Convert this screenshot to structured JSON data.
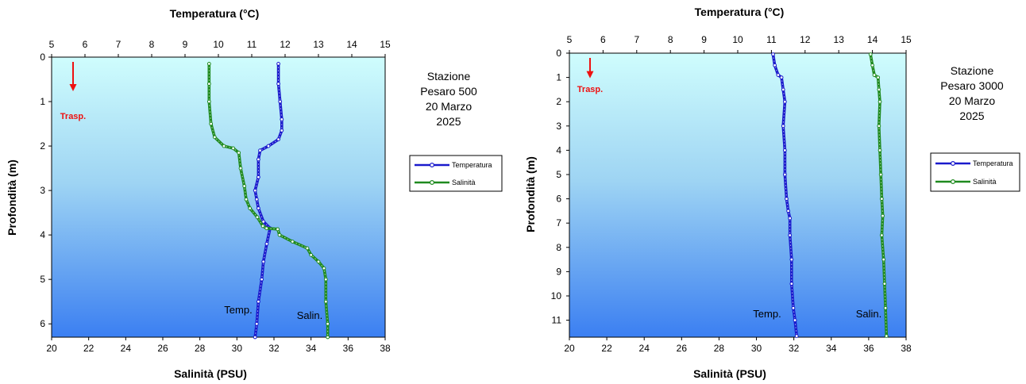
{
  "chart_data": [
    {
      "type": "line",
      "title_top": "Temperatura (°C)",
      "xlabel_bottom": "Salinità (PSU)",
      "ylabel": "Profondità (m)",
      "station": [
        "Stazione",
        "Pesaro 500",
        "20 Marzo",
        "2025"
      ],
      "temp_axis": {
        "min": 5,
        "max": 15,
        "ticks": [
          5,
          6,
          7,
          8,
          9,
          10,
          11,
          12,
          13,
          14,
          15
        ]
      },
      "sal_axis": {
        "min": 20,
        "max": 38,
        "ticks": [
          20,
          22,
          24,
          26,
          28,
          30,
          32,
          34,
          36,
          38
        ]
      },
      "depth_axis": {
        "min": 0,
        "max": 6.3,
        "ticks": [
          0,
          1,
          2,
          3,
          4,
          5,
          6
        ],
        "inverted": true
      },
      "series": [
        {
          "name": "Temperatura",
          "axis": "temp",
          "color": "#1a1acc",
          "points": [
            [
              11.8,
              0.15
            ],
            [
              11.8,
              0.6
            ],
            [
              11.85,
              1.0
            ],
            [
              11.9,
              1.4
            ],
            [
              11.9,
              1.65
            ],
            [
              11.8,
              1.85
            ],
            [
              11.5,
              2.0
            ],
            [
              11.25,
              2.1
            ],
            [
              11.2,
              2.3
            ],
            [
              11.2,
              2.7
            ],
            [
              11.1,
              3.0
            ],
            [
              11.15,
              3.2
            ],
            [
              11.2,
              3.4
            ],
            [
              11.35,
              3.7
            ],
            [
              11.55,
              3.85
            ],
            [
              11.45,
              4.2
            ],
            [
              11.35,
              4.6
            ],
            [
              11.3,
              5.0
            ],
            [
              11.2,
              5.5
            ],
            [
              11.15,
              6.0
            ],
            [
              11.1,
              6.3
            ]
          ]
        },
        {
          "name": "Salinità",
          "axis": "sal",
          "color": "#1f8a1f",
          "points": [
            [
              28.5,
              0.15
            ],
            [
              28.5,
              0.6
            ],
            [
              28.5,
              1.0
            ],
            [
              28.6,
              1.5
            ],
            [
              28.8,
              1.8
            ],
            [
              29.3,
              2.0
            ],
            [
              29.8,
              2.05
            ],
            [
              30.1,
              2.15
            ],
            [
              30.2,
              2.5
            ],
            [
              30.4,
              2.9
            ],
            [
              30.5,
              3.2
            ],
            [
              30.7,
              3.4
            ],
            [
              31.1,
              3.6
            ],
            [
              31.4,
              3.8
            ],
            [
              31.6,
              3.85
            ],
            [
              32.2,
              3.87
            ],
            [
              32.3,
              4.0
            ],
            [
              33.0,
              4.15
            ],
            [
              33.8,
              4.3
            ],
            [
              34.0,
              4.45
            ],
            [
              34.4,
              4.6
            ],
            [
              34.7,
              4.75
            ],
            [
              34.8,
              5.0
            ],
            [
              34.8,
              5.5
            ],
            [
              34.9,
              6.0
            ],
            [
              34.9,
              6.3
            ]
          ]
        }
      ],
      "annotations": {
        "temp_label": "Temp.",
        "sal_label": "Salin.",
        "trasp_label": "Trasp.",
        "trasp_depth": 0.75
      },
      "legend": [
        "Temperatura",
        "Salinità"
      ]
    },
    {
      "type": "line",
      "title_top": "Temperatura (°C)",
      "xlabel_bottom": "Salinità (PSU)",
      "ylabel": "Profondità (m)",
      "station": [
        "Stazione",
        "Pesaro 3000",
        "20 Marzo",
        "2025"
      ],
      "temp_axis": {
        "min": 5,
        "max": 15,
        "ticks": [
          5,
          6,
          7,
          8,
          9,
          10,
          11,
          12,
          13,
          14,
          15
        ]
      },
      "sal_axis": {
        "min": 20,
        "max": 38,
        "ticks": [
          20,
          22,
          24,
          26,
          28,
          30,
          32,
          34,
          36,
          38
        ]
      },
      "depth_axis": {
        "min": 0,
        "max": 11.7,
        "ticks": [
          0,
          1,
          2,
          3,
          4,
          5,
          6,
          7,
          8,
          9,
          10,
          11
        ],
        "inverted": true
      },
      "series": [
        {
          "name": "Temperatura",
          "axis": "temp",
          "color": "#1a1acc",
          "points": [
            [
              11.05,
              0.05
            ],
            [
              11.1,
              0.5
            ],
            [
              11.2,
              0.9
            ],
            [
              11.3,
              1.0
            ],
            [
              11.35,
              1.5
            ],
            [
              11.4,
              2.0
            ],
            [
              11.35,
              3.0
            ],
            [
              11.4,
              4.0
            ],
            [
              11.4,
              5.0
            ],
            [
              11.45,
              6.0
            ],
            [
              11.5,
              6.5
            ],
            [
              11.55,
              6.8
            ],
            [
              11.55,
              7.5
            ],
            [
              11.6,
              8.5
            ],
            [
              11.6,
              9.5
            ],
            [
              11.65,
              10.5
            ],
            [
              11.7,
              11.0
            ],
            [
              11.75,
              11.65
            ]
          ]
        },
        {
          "name": "Salinità",
          "axis": "sal",
          "color": "#1f8a1f",
          "points": [
            [
              36.1,
              0.05
            ],
            [
              36.2,
              0.5
            ],
            [
              36.3,
              0.9
            ],
            [
              36.5,
              1.0
            ],
            [
              36.55,
              1.5
            ],
            [
              36.6,
              2.0
            ],
            [
              36.55,
              3.0
            ],
            [
              36.6,
              4.0
            ],
            [
              36.65,
              5.0
            ],
            [
              36.7,
              6.0
            ],
            [
              36.75,
              6.7
            ],
            [
              36.7,
              7.5
            ],
            [
              36.8,
              8.5
            ],
            [
              36.85,
              9.5
            ],
            [
              36.9,
              10.5
            ],
            [
              36.95,
              11.65
            ]
          ]
        }
      ],
      "annotations": {
        "temp_label": "Temp.",
        "sal_label": "Salin.",
        "trasp_label": "Trasp.",
        "trasp_depth": 1.0
      },
      "legend": [
        "Temperatura",
        "Salinità"
      ]
    }
  ]
}
